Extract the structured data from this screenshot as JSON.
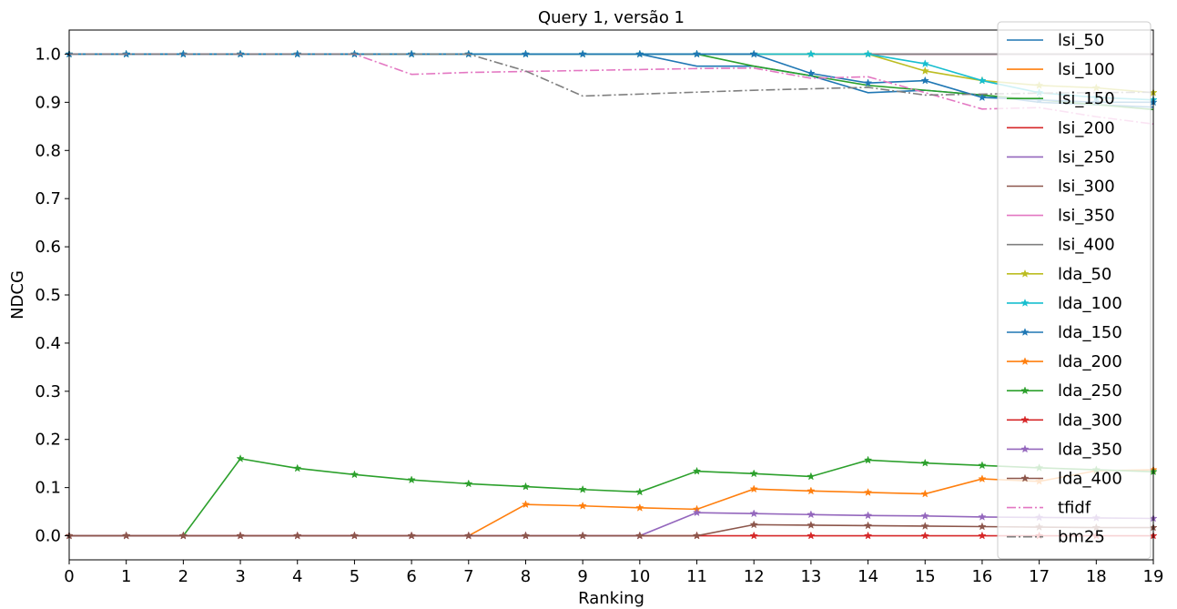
{
  "chart_data": {
    "type": "line",
    "title": "Query 1, versão 1",
    "xlabel": "Ranking",
    "ylabel": "NDCG",
    "xlim": [
      0,
      19
    ],
    "ylim": [
      -0.05,
      1.05
    ],
    "xticks": [
      "0",
      "1",
      "2",
      "3",
      "4",
      "5",
      "6",
      "7",
      "8",
      "9",
      "10",
      "11",
      "12",
      "13",
      "14",
      "15",
      "16",
      "17",
      "18",
      "19"
    ],
    "yticks": [
      "0.0",
      "0.1",
      "0.2",
      "0.3",
      "0.4",
      "0.5",
      "0.6",
      "0.7",
      "0.8",
      "0.9",
      "1.0"
    ],
    "grid": false,
    "legend_position": "upper-right",
    "x": [
      0,
      1,
      2,
      3,
      4,
      5,
      6,
      7,
      8,
      9,
      10,
      11,
      12,
      13,
      14,
      15,
      16,
      17,
      18,
      19
    ],
    "series": [
      {
        "name": "lsi_50",
        "color": "#1f77b4",
        "style": "solid",
        "marker": "none",
        "values": [
          1,
          1,
          1,
          1,
          1,
          1,
          1,
          1,
          1,
          1,
          1,
          0.975,
          0.975,
          0.955,
          0.92,
          0.925,
          0.915,
          0.9,
          0.895,
          0.89
        ]
      },
      {
        "name": "lsi_100",
        "color": "#ff7f0e",
        "style": "solid",
        "marker": "none",
        "values": [
          1,
          1,
          1,
          1,
          1,
          1,
          1,
          1,
          1,
          1,
          1,
          1,
          1,
          1,
          1,
          1,
          1,
          1,
          1,
          1
        ]
      },
      {
        "name": "lsi_150",
        "color": "#2ca02c",
        "style": "solid",
        "marker": "none",
        "values": [
          1,
          1,
          1,
          1,
          1,
          1,
          1,
          1,
          1,
          1,
          1,
          1,
          0.975,
          0.955,
          0.935,
          0.925,
          0.915,
          0.905,
          0.895,
          0.885
        ]
      },
      {
        "name": "lsi_200",
        "color": "#d62728",
        "style": "solid",
        "marker": "none",
        "values": [
          1,
          1,
          1,
          1,
          1,
          1,
          1,
          1,
          1,
          1,
          1,
          1,
          1,
          1,
          1,
          1,
          1,
          1,
          1,
          1
        ]
      },
      {
        "name": "lsi_250",
        "color": "#9467bd",
        "style": "solid",
        "marker": "none",
        "values": [
          1,
          1,
          1,
          1,
          1,
          1,
          1,
          1,
          1,
          1,
          1,
          1,
          1,
          1,
          1,
          1,
          1,
          1,
          1,
          1
        ]
      },
      {
        "name": "lsi_300",
        "color": "#8c564b",
        "style": "solid",
        "marker": "none",
        "values": [
          1,
          1,
          1,
          1,
          1,
          1,
          1,
          1,
          1,
          1,
          1,
          1,
          1,
          1,
          1,
          1,
          1,
          1,
          1,
          1
        ]
      },
      {
        "name": "lsi_350",
        "color": "#e377c2",
        "style": "solid",
        "marker": "none",
        "values": [
          1,
          1,
          1,
          1,
          1,
          1,
          1,
          1,
          1,
          1,
          1,
          1,
          1,
          1,
          1,
          1,
          1,
          1,
          1,
          1
        ]
      },
      {
        "name": "lsi_400",
        "color": "#7f7f7f",
        "style": "solid",
        "marker": "none",
        "values": [
          1,
          1,
          1,
          1,
          1,
          1,
          1,
          1,
          1,
          1,
          1,
          1,
          1,
          1,
          1,
          1,
          1,
          1,
          1,
          1
        ]
      },
      {
        "name": "lda_50",
        "color": "#bcbd22",
        "style": "solid",
        "marker": "star",
        "values": [
          1,
          1,
          1,
          1,
          1,
          1,
          1,
          1,
          1,
          1,
          1,
          1,
          1,
          1,
          1,
          0.965,
          0.945,
          0.935,
          0.93,
          0.92
        ]
      },
      {
        "name": "lda_100",
        "color": "#17becf",
        "style": "solid",
        "marker": "star",
        "values": [
          1,
          1,
          1,
          1,
          1,
          1,
          1,
          1,
          1,
          1,
          1,
          1,
          1,
          1,
          1,
          0.98,
          0.945,
          0.92,
          0.91,
          0.905
        ]
      },
      {
        "name": "lda_150",
        "color": "#1f77b4",
        "style": "solid",
        "marker": "star",
        "values": [
          1,
          1,
          1,
          1,
          1,
          1,
          1,
          1,
          1,
          1,
          1,
          1,
          1,
          0.96,
          0.94,
          0.945,
          0.91,
          0.905,
          0.9,
          0.9
        ]
      },
      {
        "name": "lda_200",
        "color": "#ff7f0e",
        "style": "solid",
        "marker": "star",
        "values": [
          0,
          0,
          0,
          0,
          0,
          0,
          0,
          0,
          0.065,
          0.062,
          0.058,
          0.055,
          0.097,
          0.093,
          0.09,
          0.087,
          0.118,
          0.113,
          0.135,
          0.137
        ]
      },
      {
        "name": "lda_250",
        "color": "#2ca02c",
        "style": "solid",
        "marker": "star",
        "values": [
          0,
          0,
          0,
          0.16,
          0.14,
          0.127,
          0.116,
          0.108,
          0.102,
          0.096,
          0.091,
          0.134,
          0.129,
          0.123,
          0.157,
          0.151,
          0.146,
          0.141,
          0.137,
          0.133
        ]
      },
      {
        "name": "lda_300",
        "color": "#d62728",
        "style": "solid",
        "marker": "star",
        "values": [
          0,
          0,
          0,
          0,
          0,
          0,
          0,
          0,
          0,
          0,
          0,
          0,
          0,
          0,
          0,
          0,
          0,
          0,
          0,
          0
        ]
      },
      {
        "name": "lda_350",
        "color": "#9467bd",
        "style": "solid",
        "marker": "star",
        "values": [
          0,
          0,
          0,
          0,
          0,
          0,
          0,
          0,
          0,
          0,
          0,
          0.048,
          0.046,
          0.044,
          0.042,
          0.041,
          0.039,
          0.038,
          0.037,
          0.036
        ]
      },
      {
        "name": "lda_400",
        "color": "#8c564b",
        "style": "solid",
        "marker": "star",
        "values": [
          0,
          0,
          0,
          0,
          0,
          0,
          0,
          0,
          0,
          0,
          0,
          0,
          0.023,
          0.022,
          0.021,
          0.02,
          0.019,
          0.018,
          0.017,
          0.017
        ]
      },
      {
        "name": "tfidf",
        "color": "#e377c2",
        "style": "dashdot",
        "marker": "none",
        "values": [
          1,
          1,
          1,
          1,
          1,
          1,
          0.958,
          0.962,
          0.964,
          0.966,
          0.968,
          0.97,
          0.971,
          0.95,
          0.953,
          0.92,
          0.886,
          0.889,
          0.87,
          0.855
        ]
      },
      {
        "name": "bm25",
        "color": "#7f7f7f",
        "style": "dashdot",
        "marker": "none",
        "values": [
          1,
          1,
          1,
          1,
          1,
          1,
          1,
          1,
          0.965,
          0.913,
          0.917,
          0.921,
          0.925,
          0.928,
          0.931,
          0.915,
          0.917,
          0.919,
          0.92,
          0.921
        ]
      }
    ]
  }
}
